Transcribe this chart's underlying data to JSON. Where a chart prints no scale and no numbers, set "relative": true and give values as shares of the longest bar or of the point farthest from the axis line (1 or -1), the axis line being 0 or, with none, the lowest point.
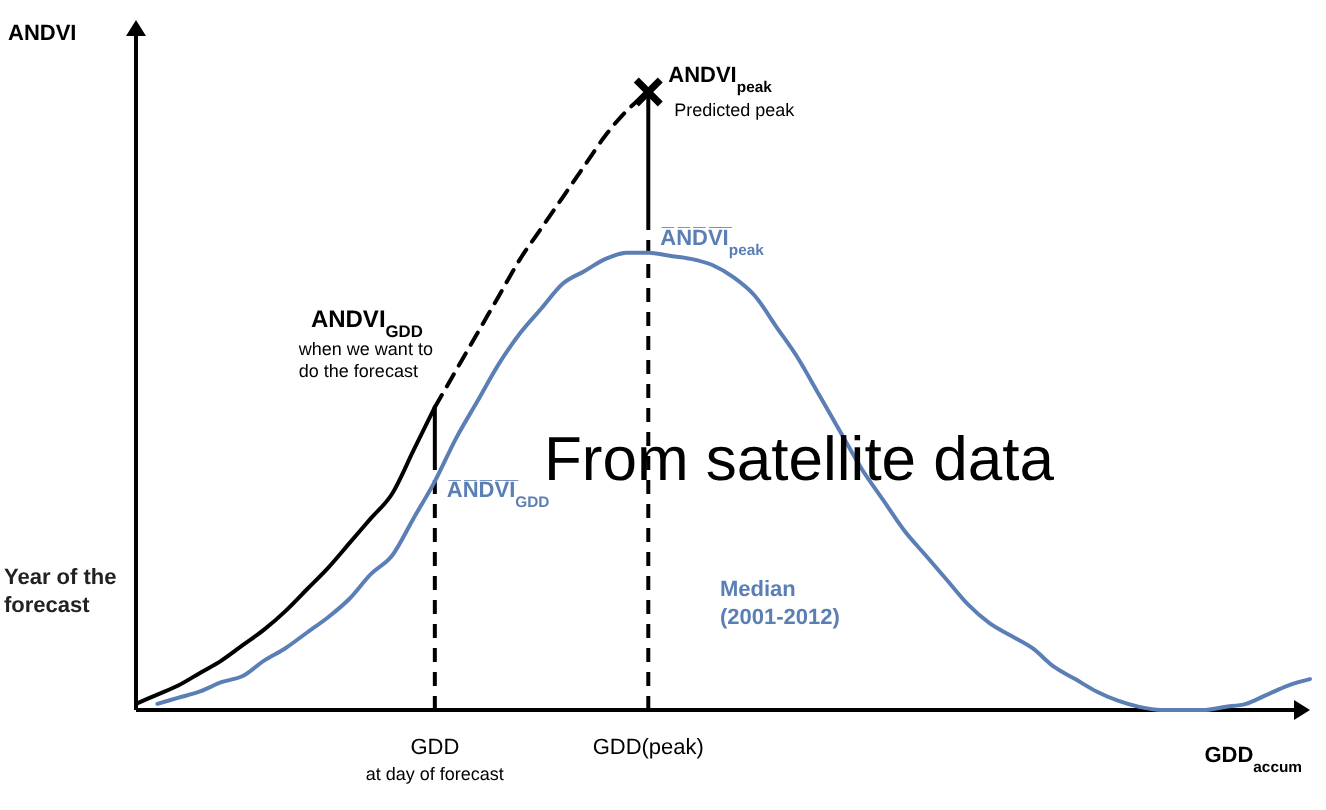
{
  "chart_data": {
    "type": "line",
    "relative": true,
    "ylabel": "ANDVI",
    "xlabel": "GDD$_{accum}$",
    "categories": [
      null,
      null,
      null,
      null,
      null,
      null,
      null,
      null,
      null,
      null,
      null,
      null,
      null,
      null,
      "GDD$_{at day of forecast}$",
      null,
      null,
      null,
      null,
      null,
      null,
      null,
      null,
      null,
      "GDD(peak)",
      null,
      null,
      null,
      null,
      null,
      null,
      null,
      null,
      null,
      null,
      null,
      null,
      null,
      null,
      null,
      null,
      null,
      null,
      null,
      null,
      null,
      null,
      null,
      null,
      null,
      null,
      null,
      null,
      null,
      null,
      null
    ],
    "series": [
      {
        "name": "Year of the forecast",
        "color": "#000000",
        "values": [
          0.01,
          0.025,
          0.04,
          0.06,
          0.08,
          0.105,
          0.13,
          0.16,
          0.195,
          0.23,
          0.27,
          0.31,
          0.35,
          0.42,
          0.49,
          null,
          null,
          null,
          null,
          null,
          null,
          null,
          null,
          null,
          null,
          null,
          null,
          null,
          null,
          null,
          null,
          null,
          null,
          null,
          null,
          null,
          null,
          null,
          null,
          null,
          null,
          null,
          null,
          null,
          null,
          null,
          null,
          null,
          null,
          null,
          null,
          null,
          null,
          null,
          null,
          null
        ]
      },
      {
        "name": "Median (2001-2012)",
        "color": "#5b7fb5",
        "values": [
          null,
          0.01,
          0.02,
          0.03,
          0.045,
          0.055,
          0.08,
          0.1,
          0.125,
          0.15,
          0.18,
          0.22,
          0.25,
          0.31,
          0.37,
          0.44,
          0.5,
          0.56,
          0.61,
          0.65,
          0.69,
          0.71,
          0.73,
          0.74,
          0.74,
          0.735,
          0.73,
          0.72,
          0.7,
          0.67,
          0.62,
          0.57,
          0.51,
          0.45,
          0.39,
          0.34,
          0.29,
          0.25,
          0.21,
          0.17,
          0.14,
          0.12,
          0.1,
          0.07,
          0.05,
          0.03,
          0.015,
          0.005,
          0,
          0,
          0,
          0.005,
          0.01,
          0.025,
          0.04,
          0.05
        ]
      },
      {
        "color": "#000000",
        "line_style": "dashed",
        "values": [
          null,
          null,
          null,
          null,
          null,
          null,
          null,
          null,
          null,
          null,
          null,
          null,
          null,
          null,
          0.49,
          0.55,
          0.61,
          0.67,
          0.73,
          0.78,
          0.83,
          0.88,
          0.93,
          0.97,
          1,
          null,
          null,
          null,
          null,
          null,
          null,
          null,
          null,
          null,
          null,
          null,
          null,
          null,
          null,
          null,
          null,
          null,
          null,
          null,
          null,
          null,
          null,
          null,
          null,
          null,
          null,
          null,
          null,
          null,
          null,
          null
        ]
      },
      {
        "type": "scatter",
        "marker": "cross",
        "color": "#000000",
        "values": [
          null,
          null,
          null,
          null,
          null,
          null,
          null,
          null,
          null,
          null,
          null,
          null,
          null,
          null,
          null,
          null,
          null,
          null,
          null,
          null,
          null,
          null,
          null,
          null,
          1,
          null,
          null,
          null,
          null,
          null,
          null,
          null,
          null,
          null,
          null,
          null,
          null,
          null,
          null,
          null,
          null,
          null,
          null,
          null,
          null,
          null,
          null,
          null,
          null,
          null,
          null,
          null,
          null,
          null,
          null,
          null
        ]
      }
    ],
    "ref_lines": [
      {
        "axis": "x",
        "value": "GDD$_{at day of forecast}$",
        "line_style": "dashed"
      },
      {
        "axis": "x",
        "value": "GDD(peak)",
        "line_style": "dashed"
      }
    ],
    "annotations": [
      {
        "text": "ANDVI$_{GDD}$",
        "x": "GDD$_{at day of forecast}$",
        "y": 0.49
      },
      {
        "text": "when we want to do the forecast",
        "x": "GDD$_{at day of forecast}$",
        "y": 0.49
      },
      {
        "text": "ANDVI$_{peak}$",
        "x": "GDD(peak)",
        "y": 1
      },
      {
        "text": "Predicted peak",
        "x": "GDD(peak)",
        "y": 1
      },
      {
        "text": "A̅N̅D̅V̅I̅$_{peak}$",
        "x": "GDD(peak)",
        "y": 0.74
      },
      {
        "text": "A̅N̅D̅V̅I̅$_{GDD}$",
        "x": "GDD$_{at day of forecast}$",
        "y": 0.37
      },
      "From satellite data"
    ]
  }
}
